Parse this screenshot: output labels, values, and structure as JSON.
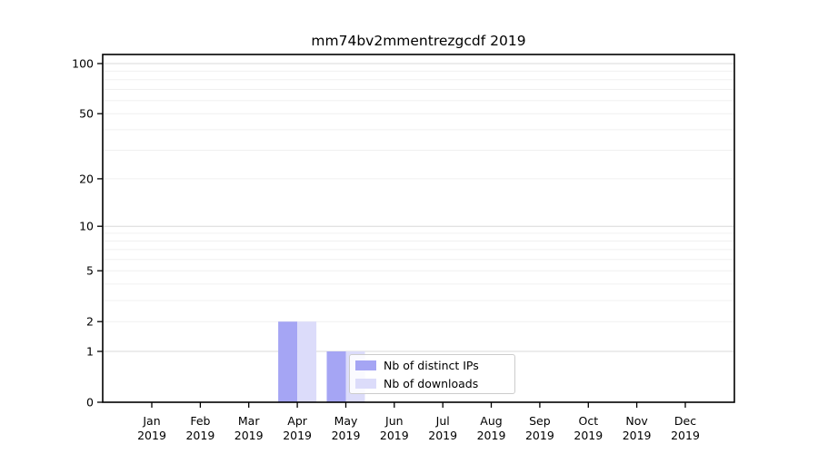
{
  "title": "mm74bv2mmentrezgcdf 2019",
  "chart_data": {
    "type": "bar",
    "title": "mm74bv2mmentrezgcdf 2019",
    "year": "2019",
    "categories": [
      "Jan",
      "Feb",
      "Mar",
      "Apr",
      "May",
      "Jun",
      "Jul",
      "Aug",
      "Sep",
      "Oct",
      "Nov",
      "Dec"
    ],
    "series": [
      {
        "name": "Nb of distinct IPs",
        "color": "#a5a5f4",
        "values": [
          0,
          0,
          0,
          2,
          1,
          0,
          0,
          0,
          0,
          0,
          0,
          0
        ]
      },
      {
        "name": "Nb of downloads",
        "color": "#dcdcfa",
        "values": [
          0,
          0,
          0,
          2,
          1,
          0,
          0,
          0,
          0,
          0,
          0,
          0
        ]
      }
    ],
    "yscale": "log10(value+1)",
    "yticks": [
      100,
      50,
      20,
      10,
      5,
      2,
      1,
      0
    ],
    "minor_gridlines": [
      1,
      2,
      3,
      4,
      5,
      6,
      7,
      8,
      9,
      10,
      20,
      30,
      40,
      50,
      60,
      70,
      80,
      90,
      100
    ],
    "ylim": [
      0,
      113
    ],
    "xlabel": "",
    "ylabel": "",
    "grid": "horizontal",
    "legend": {
      "position": "lower-center",
      "items": [
        {
          "label": "Nb of distinct IPs",
          "color": "#a5a5f4"
        },
        {
          "label": "Nb of downloads",
          "color": "#dcdcfa"
        }
      ]
    }
  },
  "colors": {
    "background": "#ffffff",
    "axis": "#000000",
    "grid_major": "#d8d8d8",
    "grid_minor": "#f0f0f0",
    "text": "#000000",
    "legend_border": "#cccccc"
  }
}
